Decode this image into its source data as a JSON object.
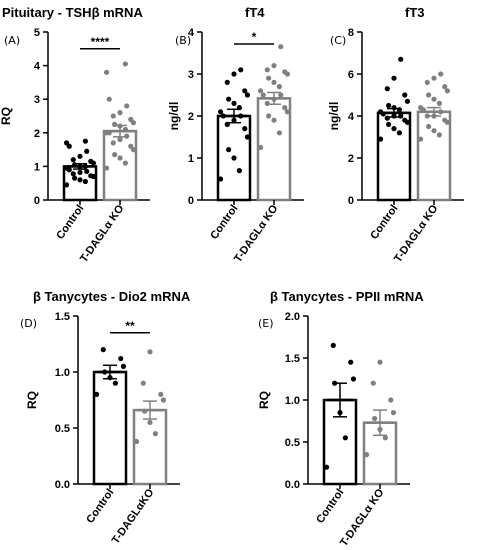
{
  "chart_data": [
    {
      "type": "bar",
      "panel": "(A)",
      "title": "Pituitary - TSHβ mRNA",
      "ylabel": "RQ",
      "categories": [
        "Control",
        "T-DAGLα KO"
      ],
      "values": [
        1.0,
        2.05
      ],
      "sem": [
        0.08,
        0.17
      ],
      "ylim": [
        0,
        5
      ],
      "yticks": [
        "0",
        "1",
        "2",
        "3",
        "4",
        "5"
      ],
      "significance": "****",
      "colors": [
        "#000000",
        "#808080"
      ],
      "points": [
        [
          0.45,
          0.55,
          0.6,
          0.65,
          0.7,
          0.72,
          0.78,
          0.82,
          0.85,
          0.9,
          0.95,
          1.0,
          1.0,
          1.05,
          1.1,
          1.15,
          1.2,
          1.3,
          1.45,
          1.6,
          1.7,
          1.75
        ],
        [
          0.95,
          1.1,
          1.25,
          1.35,
          1.5,
          1.6,
          1.7,
          1.8,
          1.9,
          2.0,
          2.0,
          2.1,
          2.2,
          2.25,
          2.3,
          2.4,
          2.5,
          2.6,
          2.8,
          3.0,
          3.8,
          4.05
        ]
      ]
    },
    {
      "type": "bar",
      "panel": "(B)",
      "title": "fT4",
      "ylabel": "ng/dl",
      "categories": [
        "Control",
        "T-DAGLα KO"
      ],
      "values": [
        2.0,
        2.42
      ],
      "sem": [
        0.16,
        0.14
      ],
      "ylim": [
        0,
        4
      ],
      "yticks": [
        "0",
        "1",
        "2",
        "3",
        "4"
      ],
      "significance": "*",
      "colors": [
        "#000000",
        "#808080"
      ],
      "points": [
        [
          0.5,
          0.7,
          1.0,
          1.2,
          1.5,
          1.7,
          1.8,
          1.9,
          2.0,
          2.0,
          2.1,
          2.2,
          2.3,
          2.4,
          2.5,
          2.6,
          2.8,
          3.0,
          3.1
        ],
        [
          1.25,
          1.6,
          1.9,
          2.0,
          2.1,
          2.2,
          2.3,
          2.4,
          2.5,
          2.5,
          2.6,
          2.7,
          2.8,
          2.9,
          3.0,
          3.05,
          3.1,
          3.2,
          3.65
        ]
      ]
    },
    {
      "type": "bar",
      "panel": "(C)",
      "title": "fT3",
      "ylabel": "ng/dl",
      "categories": [
        "Control",
        "T-DAGLα KO"
      ],
      "values": [
        4.15,
        4.2
      ],
      "sem": [
        0.2,
        0.2
      ],
      "ylim": [
        0,
        8
      ],
      "yticks": [
        "0",
        "2",
        "4",
        "6",
        "8"
      ],
      "significance": "",
      "colors": [
        "#000000",
        "#808080"
      ],
      "points": [
        [
          2.9,
          3.2,
          3.4,
          3.6,
          3.7,
          3.8,
          3.9,
          4.0,
          4.0,
          4.1,
          4.2,
          4.3,
          4.4,
          4.5,
          4.7,
          5.0,
          5.3,
          5.8,
          6.7
        ],
        [
          2.9,
          3.1,
          3.3,
          3.5,
          3.7,
          3.8,
          4.0,
          4.0,
          4.2,
          4.3,
          4.4,
          4.6,
          4.8,
          5.0,
          5.2,
          5.4,
          5.6,
          5.8,
          6.0
        ]
      ]
    },
    {
      "type": "bar",
      "panel": "(D)",
      "title": "β Tanycytes - Dio2 mRNA",
      "ylabel": "RQ",
      "categories": [
        "Control",
        "T-DAGLαKO"
      ],
      "values": [
        1.0,
        0.66
      ],
      "sem": [
        0.06,
        0.08
      ],
      "ylim": [
        0,
        1.5
      ],
      "yticks": [
        "0.0",
        "0.5",
        "1.0",
        "1.5"
      ],
      "significance": "**",
      "colors": [
        "#000000",
        "#808080"
      ],
      "points": [
        [
          0.8,
          0.9,
          0.95,
          1.0,
          1.05,
          1.12,
          1.2
        ],
        [
          0.38,
          0.45,
          0.55,
          0.65,
          0.75,
          0.8,
          0.9,
          1.18
        ]
      ]
    },
    {
      "type": "bar",
      "panel": "(E)",
      "title": "β Tanycytes -  PPII mRNA",
      "ylabel": "RQ",
      "categories": [
        "Control",
        "T-DAGLα KO"
      ],
      "values": [
        1.0,
        0.73
      ],
      "sem": [
        0.2,
        0.15
      ],
      "ylim": [
        0,
        2.0
      ],
      "yticks": [
        "0.0",
        "0.5",
        "1.0",
        "1.5",
        "2.0"
      ],
      "significance": "",
      "colors": [
        "#000000",
        "#808080"
      ],
      "points": [
        [
          0.2,
          0.55,
          0.85,
          1.2,
          1.25,
          1.45,
          1.65
        ],
        [
          0.35,
          0.55,
          0.65,
          0.78,
          0.85,
          1.0,
          1.2,
          1.45
        ]
      ]
    }
  ]
}
